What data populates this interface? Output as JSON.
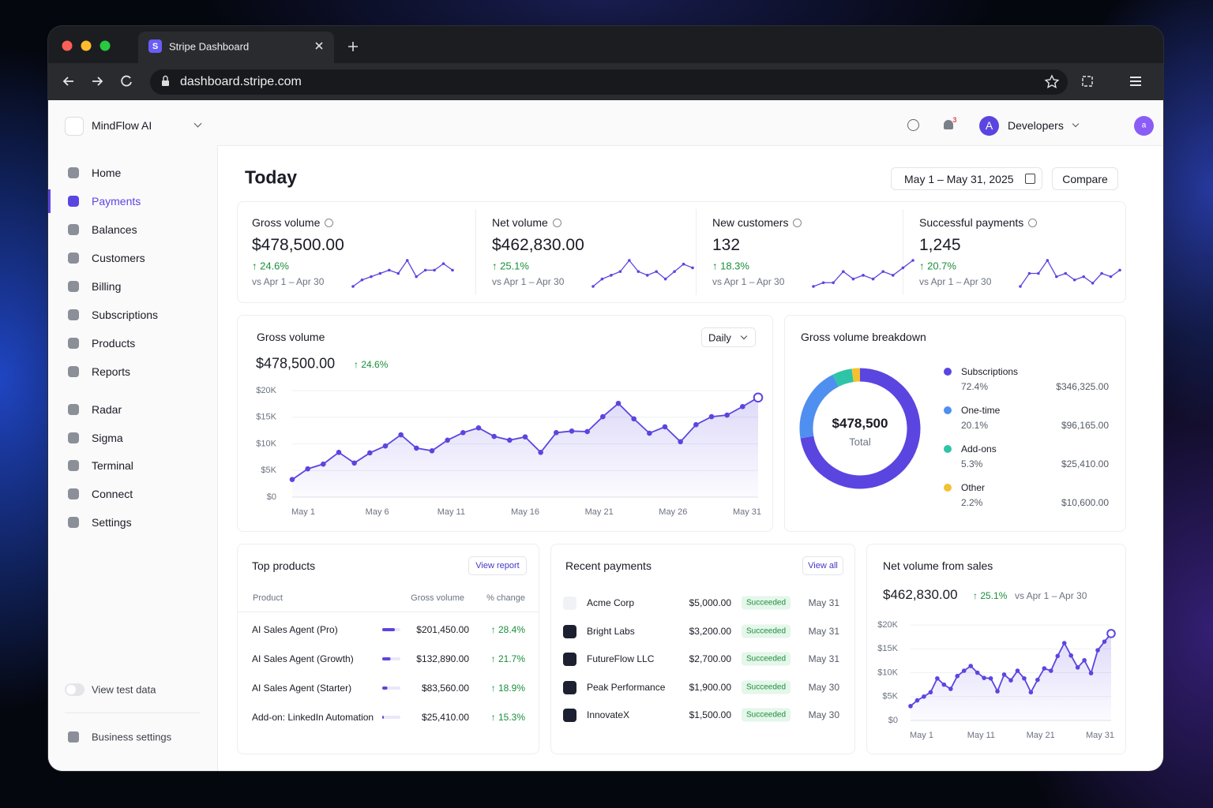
{
  "browser": {
    "tab_icon": "S",
    "tab_title": "Stripe Dashboard",
    "url": "dashboard.stripe.com"
  },
  "sidebar": {
    "account": "MindFlow AI",
    "nav": [
      "Home",
      "Payments",
      "Balances",
      "Customers",
      "Billing",
      "Subscriptions",
      "Products",
      "Reports",
      "Radar",
      "Sigma",
      "Terminal",
      "Connect",
      "Settings"
    ],
    "active": 1,
    "test_toggle": "View test data",
    "footer": "Business settings"
  },
  "topbar": {
    "notifications": "3",
    "avatar": "A",
    "menu": "Developers",
    "user_avatar": "a"
  },
  "header": {
    "title": "Today",
    "date_range": "May 1 – May 31, 2025",
    "compare": "Compare"
  },
  "kpis": [
    {
      "label": "Gross volume",
      "value": "$478,500.00",
      "change": "↑ 24.6%",
      "compare": "vs Apr 1 – Apr 30",
      "spark": [
        1,
        3,
        4,
        5,
        6,
        5,
        9,
        4,
        6,
        6,
        8,
        6
      ]
    },
    {
      "label": "Net volume",
      "value": "$462,830.00",
      "change": "↑ 25.1%",
      "compare": "vs Apr 1 – Apr 30",
      "spark": [
        1,
        3,
        4,
        5,
        8,
        5,
        4,
        5,
        3,
        5,
        7,
        6
      ]
    },
    {
      "label": "New customers",
      "value": "132",
      "change": "↑ 18.3%",
      "compare": "vs Apr 1 – Apr 30",
      "spark": [
        1,
        2,
        2,
        5,
        3,
        4,
        3,
        5,
        4,
        6,
        8
      ]
    },
    {
      "label": "Successful payments",
      "value": "1,245",
      "change": "↑ 20.7%",
      "compare": "vs Apr 1 – Apr 30",
      "spark": [
        1,
        5,
        5,
        9,
        4,
        5,
        3,
        4,
        2,
        5,
        4,
        6
      ]
    }
  ],
  "gross_chart": {
    "type": "line",
    "title": "Gross volume",
    "total": "$478,500.00",
    "change": "↑ 24.6%",
    "period": "Daily",
    "categories": [
      "May 1",
      null,
      null,
      null,
      null,
      "May 6",
      null,
      null,
      null,
      null,
      "May 11",
      null,
      null,
      null,
      null,
      "May 16",
      null,
      null,
      null,
      null,
      "May 21",
      null,
      null,
      null,
      null,
      "May 26",
      null,
      null,
      null,
      null,
      "May 31"
    ],
    "values": [
      3300,
      5300,
      6200,
      8400,
      6400,
      8300,
      9600,
      11700,
      9200,
      8700,
      10700,
      12100,
      13000,
      11400,
      10700,
      11300,
      8400,
      12100,
      12400,
      12300,
      15100,
      17600,
      14700,
      12000,
      13200,
      10400,
      13600,
      15100,
      15400,
      17000,
      18700
    ],
    "color": "#5b45e0",
    "ylim": [
      0,
      20000
    ],
    "yticks": [
      {
        "value": 0,
        "label": "$0"
      },
      {
        "value": 5000,
        "label": "$5K"
      },
      {
        "value": 10000,
        "label": "$10K"
      },
      {
        "value": 15000,
        "label": "$15K"
      },
      {
        "value": 20000,
        "label": "$20K"
      }
    ]
  },
  "breakdown": {
    "type": "pie",
    "title": "Gross volume breakdown",
    "total": "$478,500",
    "total_label": "Total",
    "segments": [
      {
        "name": "Subscriptions",
        "value": 72.4,
        "value_label": "72.4%",
        "amount": "$346,325.00",
        "color": "#5b45e0"
      },
      {
        "name": "One-time",
        "value": 20.1,
        "value_label": "20.1%",
        "amount": "$96,165.00",
        "color": "#4f8ff0"
      },
      {
        "name": "Add-ons",
        "value": 5.3,
        "value_label": "5.3%",
        "amount": "$25,410.00",
        "color": "#2ec4a8"
      },
      {
        "name": "Other",
        "value": 2.2,
        "value_label": "2.2%",
        "amount": "$10,600.00",
        "color": "#f2c230"
      }
    ]
  },
  "top_products": {
    "title": "Top products",
    "button": "View report",
    "columns": [
      "Product",
      "Gross volume",
      "% change"
    ],
    "rows": [
      {
        "name": "AI Sales Agent (Pro)",
        "volume": 201450,
        "volume_label": "$201,450.00",
        "change": "↑ 28.4%"
      },
      {
        "name": "AI Sales Agent (Growth)",
        "volume": 132890,
        "volume_label": "$132,890.00",
        "change": "↑ 21.7%"
      },
      {
        "name": "AI Sales Agent (Starter)",
        "volume": 83560,
        "volume_label": "$83,560.00",
        "change": "↑ 18.9%"
      },
      {
        "name": "Add-on: LinkedIn Automation",
        "volume": 25410,
        "volume_label": "$25,410.00",
        "change": "↑ 15.3%"
      }
    ]
  },
  "recent_payments": {
    "title": "Recent payments",
    "button": "View all",
    "rows": [
      {
        "name": "Acme Corp",
        "amount": "$5,000.00",
        "status": "Succeeded",
        "date": "May 31"
      },
      {
        "name": "Bright Labs",
        "amount": "$3,200.00",
        "status": "Succeeded",
        "date": "May 31"
      },
      {
        "name": "FutureFlow LLC",
        "amount": "$2,700.00",
        "status": "Succeeded",
        "date": "May 31"
      },
      {
        "name": "Peak Performance",
        "amount": "$1,900.00",
        "status": "Succeeded",
        "date": "May 30"
      },
      {
        "name": "InnovateX",
        "amount": "$1,500.00",
        "status": "Succeeded",
        "date": "May 30"
      }
    ]
  },
  "net_chart": {
    "type": "line",
    "title": "Net volume from sales",
    "total": "$462,830.00",
    "change": "↑ 25.1%",
    "compare": "vs Apr 1 – Apr 30",
    "categories": [
      "May 1",
      null,
      null,
      null,
      null,
      null,
      null,
      null,
      null,
      null,
      "May 11",
      null,
      null,
      null,
      null,
      null,
      null,
      null,
      null,
      null,
      "May 21",
      null,
      null,
      null,
      null,
      null,
      null,
      null,
      null,
      null,
      "May 31"
    ],
    "values": [
      3000,
      4200,
      5000,
      5900,
      8800,
      7500,
      6600,
      9300,
      10400,
      11400,
      10000,
      8900,
      8800,
      6100,
      9600,
      8400,
      10400,
      8800,
      5900,
      8500,
      10900,
      10400,
      13500,
      16200,
      13600,
      11100,
      12600,
      9900,
      14700,
      16500,
      18200
    ],
    "color": "#5b45e0",
    "ylim": [
      0,
      20000
    ],
    "yticks": [
      {
        "value": 0,
        "label": "$0"
      },
      {
        "value": 5000,
        "label": "$5K"
      },
      {
        "value": 10000,
        "label": "$10K"
      },
      {
        "value": 15000,
        "label": "$15K"
      },
      {
        "value": 20000,
        "label": "$20K"
      }
    ]
  }
}
